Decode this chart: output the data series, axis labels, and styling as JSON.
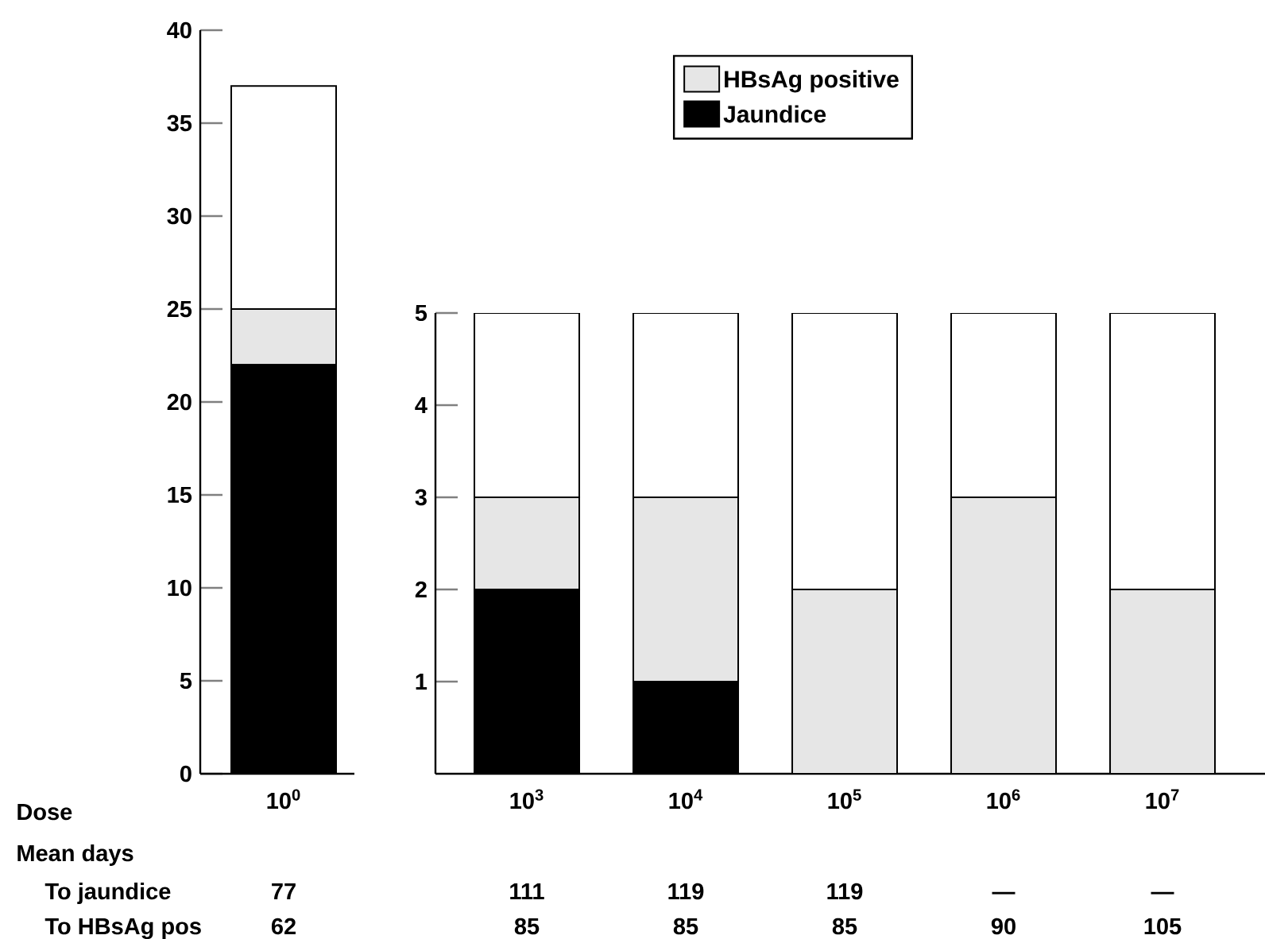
{
  "chart_data": [
    {
      "type": "bar",
      "stacked": true,
      "categories": [
        "10$^{0}$"
      ],
      "ylim": [
        0,
        40
      ],
      "yticks": [
        0,
        5,
        10,
        15,
        20,
        25,
        30,
        35,
        40
      ],
      "series": [
        {
          "color": "#000000",
          "values": [
            22
          ]
        },
        {
          "color": "#e6e6e6",
          "values": [
            3
          ]
        },
        {
          "color": "#ffffff",
          "values": [
            12
          ]
        }
      ],
      "annotations": [
        "Dose",
        "Mean days",
        "To jaundice",
        "To HBsAg pos",
        "77",
        "62"
      ]
    },
    {
      "type": "bar",
      "stacked": true,
      "categories": [
        "10$^{3}$",
        "10$^{4}$",
        "10$^{5}$",
        "10$^{6}$",
        "10$^{7}$"
      ],
      "ylim": [
        0,
        5
      ],
      "yticks": [
        1,
        2,
        3,
        4,
        5
      ],
      "legend": "top",
      "series": [
        {
          "name": "Jaundice",
          "color": "#000000",
          "values": [
            2,
            1,
            0,
            0,
            0
          ]
        },
        {
          "name": "HBsAg positive",
          "color": "#e6e6e6",
          "values": [
            1,
            2,
            2,
            3,
            2
          ]
        },
        {
          "color": "#ffffff",
          "values": [
            2,
            2,
            3,
            2,
            3
          ]
        }
      ],
      "annotations": [
        "111",
        "85",
        "119",
        "85",
        "119",
        "85",
        "—",
        "90",
        "—",
        "105"
      ]
    }
  ]
}
